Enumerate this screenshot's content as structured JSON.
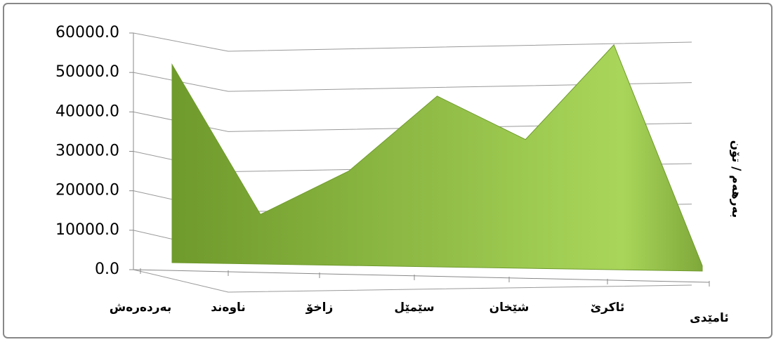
{
  "chart_data": {
    "type": "area",
    "categories": [
      "بەردەرەش",
      "ناوەند",
      "زاخۆ",
      "سێمێل",
      "شێخان",
      "ئاکرێ",
      "ئامێدی"
    ],
    "values": [
      52000,
      14000,
      25000,
      44000,
      33000,
      57000,
      1000
    ],
    "color": "#8db83a",
    "y_axis_label": "بەرهەم / تۆن",
    "ylim": [
      0,
      60000
    ],
    "yticks": [
      {
        "value": 0,
        "label": "0.0"
      },
      {
        "value": 10000,
        "label": "10000.0"
      },
      {
        "value": 20000,
        "label": "20000.0"
      },
      {
        "value": 30000,
        "label": "30000.0"
      },
      {
        "value": 40000,
        "label": "40000.0"
      },
      {
        "value": 50000,
        "label": "50000.0"
      },
      {
        "value": 60000,
        "label": "60000.0"
      }
    ],
    "grid": true
  }
}
